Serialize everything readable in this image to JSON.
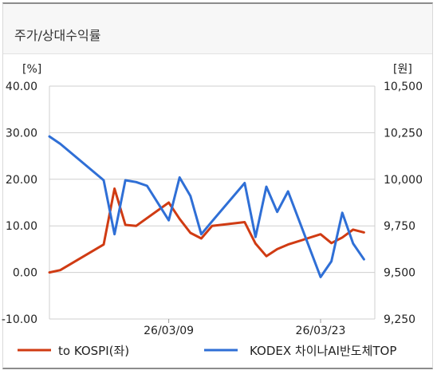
{
  "header": {
    "title": "주가/상대수익률"
  },
  "chart_data": {
    "type": "line",
    "left_axis": {
      "unit": "[%]",
      "ticks": [
        "40.00",
        "30.00",
        "20.00",
        "10.00",
        "0.00",
        "-10.00"
      ],
      "ylim": [
        -10,
        40
      ]
    },
    "right_axis": {
      "unit": "[원]",
      "ticks": [
        "10,500",
        "10,250",
        "10,000",
        "9,750",
        "9,500",
        "9,250"
      ],
      "ylim": [
        9250,
        10500
      ]
    },
    "x_ticks": [
      {
        "label": "26/03/09",
        "index": 11
      },
      {
        "label": "26/03/23",
        "index": 25
      }
    ],
    "series": [
      {
        "name": "to KOSPI(좌)",
        "axis": "left",
        "color": "#d03b13",
        "values": [
          0.0,
          0.5,
          6.0,
          18.0,
          10.2,
          10.0,
          15.0,
          11.5,
          8.5,
          7.3,
          10.0,
          10.8,
          6.2,
          3.5,
          5.0,
          6.0,
          8.2,
          6.3,
          7.5,
          9.2,
          8.6
        ],
        "x_index": [
          0,
          1,
          5,
          6,
          7,
          8,
          11,
          12,
          13,
          14,
          15,
          18,
          19,
          20,
          21,
          22,
          25,
          26,
          27,
          28,
          29
        ]
      },
      {
        "name": "KODEX 차이나AI반도체TOP",
        "axis": "right",
        "color": "#2f6fd6",
        "values": [
          10230,
          10190,
          9995,
          9705,
          9995,
          9985,
          9965,
          9780,
          10010,
          9910,
          9705,
          9775,
          9980,
          9690,
          9960,
          9825,
          9935,
          9475,
          9560,
          9820,
          9655,
          9570
        ],
        "x_index": [
          0,
          1,
          5,
          6,
          7,
          8,
          9,
          11,
          12,
          13,
          14,
          15,
          18,
          19,
          20,
          21,
          22,
          25,
          26,
          27,
          28,
          29
        ]
      }
    ],
    "legend_position": "bottom",
    "grid": true
  }
}
